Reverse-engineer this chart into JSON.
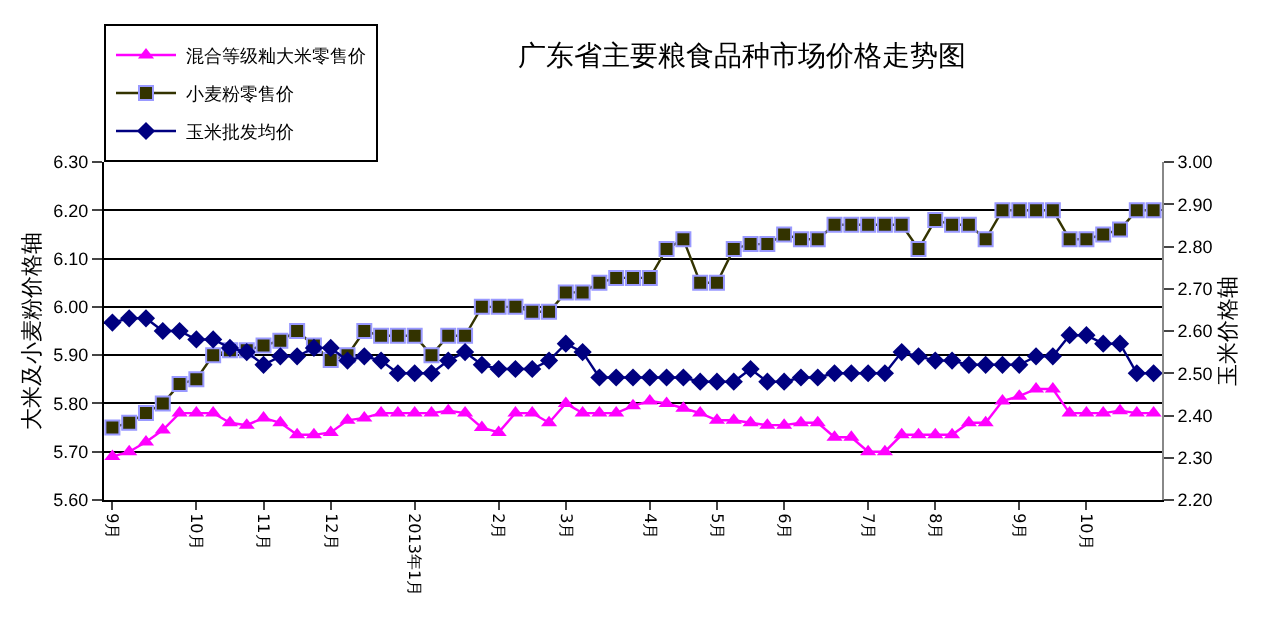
{
  "chart_data": {
    "type": "line",
    "title": "广东省主要粮食品种市场价格走势图",
    "ylabel": "大米及小麦粉价格轴",
    "y2label": "玉米价格轴",
    "categories": [
      "9月",
      null,
      null,
      null,
      null,
      "10月",
      null,
      null,
      null,
      "11月",
      null,
      null,
      null,
      "12月",
      null,
      null,
      null,
      null,
      "2013年1月",
      null,
      null,
      null,
      null,
      "2月",
      null,
      null,
      null,
      "3月",
      null,
      null,
      null,
      null,
      "4月",
      null,
      null,
      null,
      "5月",
      null,
      null,
      null,
      "6月",
      null,
      null,
      null,
      null,
      "7月",
      null,
      null,
      null,
      "8月",
      null,
      null,
      null,
      null,
      "9月",
      null,
      null,
      null,
      "10月",
      null,
      null,
      null,
      null
    ],
    "ylim": [
      5.6,
      6.3
    ],
    "yticks": [
      {
        "value": 5.6,
        "label": "5.60"
      },
      {
        "value": 5.7,
        "label": "5.70"
      },
      {
        "value": 5.8,
        "label": "5.80"
      },
      {
        "value": 5.9,
        "label": "5.90"
      },
      {
        "value": 6.0,
        "label": "6.00"
      },
      {
        "value": 6.1,
        "label": "6.10"
      },
      {
        "value": 6.2,
        "label": "6.20"
      },
      {
        "value": 6.3,
        "label": "6.30"
      }
    ],
    "y2lim": [
      2.2,
      3.0
    ],
    "y2ticks": [
      {
        "value": 2.2,
        "label": "2.20"
      },
      {
        "value": 2.3,
        "label": "2.30"
      },
      {
        "value": 2.4,
        "label": "2.40"
      },
      {
        "value": 2.5,
        "label": "2.50"
      },
      {
        "value": 2.6,
        "label": "2.60"
      },
      {
        "value": 2.7,
        "label": "2.70"
      },
      {
        "value": 2.8,
        "label": "2.80"
      },
      {
        "value": 2.9,
        "label": "2.90"
      },
      {
        "value": 3.0,
        "label": "3.00"
      }
    ],
    "grid": "y",
    "legend": "top left",
    "series": [
      {
        "name": "混合等级籼大米零售价",
        "color": "#ff00ff",
        "marker": "triangle",
        "values": [
          5.69,
          5.7,
          5.72,
          5.745,
          5.78,
          5.78,
          5.78,
          5.76,
          5.755,
          5.77,
          5.76,
          5.735,
          5.735,
          5.74,
          5.765,
          5.77,
          5.78,
          5.78,
          5.78,
          5.78,
          5.785,
          5.78,
          5.75,
          5.74,
          5.78,
          5.78,
          5.76,
          5.8,
          5.78,
          5.78,
          5.78,
          5.795,
          5.805,
          5.8,
          5.79,
          5.78,
          5.765,
          5.765,
          5.76,
          5.755,
          5.755,
          5.76,
          5.76,
          5.73,
          5.73,
          5.7,
          5.7,
          5.735,
          5.735,
          5.735,
          5.735,
          5.76,
          5.76,
          5.805,
          5.815,
          5.83,
          5.83,
          5.78,
          5.78,
          5.78,
          5.785,
          5.78,
          5.78
        ]
      },
      {
        "name": "小麦粉零售价",
        "color": "#333300",
        "marker": "square",
        "values": [
          5.75,
          5.76,
          5.78,
          5.8,
          5.84,
          5.85,
          5.9,
          5.91,
          5.91,
          5.92,
          5.93,
          5.95,
          5.92,
          5.89,
          5.9,
          5.95,
          5.94,
          5.94,
          5.94,
          5.9,
          5.94,
          5.94,
          6.0,
          6.0,
          6.0,
          5.99,
          5.99,
          6.03,
          6.03,
          6.05,
          6.06,
          6.06,
          6.06,
          6.12,
          6.14,
          6.05,
          6.05,
          6.12,
          6.13,
          6.13,
          6.15,
          6.14,
          6.14,
          6.17,
          6.17,
          6.17,
          6.17,
          6.17,
          6.12,
          6.18,
          6.17,
          6.17,
          6.14,
          6.2,
          6.2,
          6.2,
          6.2,
          6.14,
          6.14,
          6.15,
          6.16,
          6.2,
          6.2
        ]
      },
      {
        "name": "玉米批发均价",
        "color": "#000080",
        "marker": "diamond",
        "axis": "y2",
        "values": [
          2.62,
          2.63,
          2.63,
          2.6,
          2.6,
          2.58,
          2.58,
          2.56,
          2.55,
          2.52,
          2.54,
          2.54,
          2.56,
          2.56,
          2.53,
          2.54,
          2.53,
          2.5,
          2.5,
          2.5,
          2.53,
          2.55,
          2.52,
          2.51,
          2.51,
          2.51,
          2.53,
          2.57,
          2.55,
          2.49,
          2.49,
          2.49,
          2.49,
          2.49,
          2.49,
          2.48,
          2.48,
          2.48,
          2.51,
          2.48,
          2.48,
          2.49,
          2.49,
          2.5,
          2.5,
          2.5,
          2.5,
          2.55,
          2.54,
          2.53,
          2.53,
          2.52,
          2.52,
          2.52,
          2.52,
          2.54,
          2.54,
          2.59,
          2.59,
          2.57,
          2.57,
          2.5,
          2.5
        ]
      }
    ]
  }
}
